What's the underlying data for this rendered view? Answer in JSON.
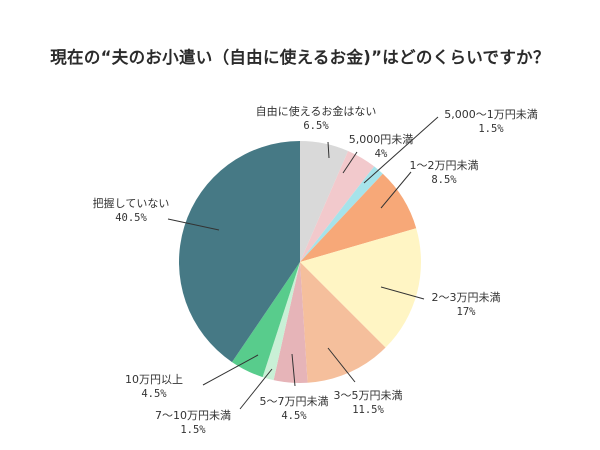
{
  "title": "現在の“夫のお小遣い（自由に使えるお金)”はどのくらいですか？",
  "chart_data": {
    "type": "pie",
    "title": "現在の“夫のお小遣い（自由に使えるお金)”はどのくらいですか？",
    "start_angle": "12 o'clock",
    "direction": "clockwise",
    "legend": "none (leader-line labels)",
    "slices": [
      {
        "label": "自由に使えるお金はない",
        "value": 6.5,
        "display": "6.5%",
        "color": "#d9d9d9"
      },
      {
        "label": "5,000円未満",
        "value": 4,
        "display": "4%",
        "color": "#f2c9cc"
      },
      {
        "label": "5,000〜1万円未満",
        "value": 1.5,
        "display": "1.5%",
        "color": "#a6e3ea"
      },
      {
        "label": "1〜2万円未満",
        "value": 8.5,
        "display": "8.5%",
        "color": "#f7a878"
      },
      {
        "label": "2〜3万円未満",
        "value": 17,
        "display": "17%",
        "color": "#fff5c4"
      },
      {
        "label": "3〜5万円未満",
        "value": 11.5,
        "display": "11.5%",
        "color": "#f5bf9c"
      },
      {
        "label": "5〜7万円未満",
        "value": 4.5,
        "display": "4.5%",
        "color": "#e6b4b8"
      },
      {
        "label": "7〜10万円未満",
        "value": 1.5,
        "display": "1.5%",
        "color": "#c9f0d6"
      },
      {
        "label": "10万円以上",
        "value": 4.5,
        "display": "4.5%",
        "color": "#58cc8c"
      },
      {
        "label": "把握していない",
        "value": 40.5,
        "display": "40.5%",
        "color": "#467985"
      }
    ]
  },
  "labels": [
    {
      "name": "自由に使えるお金はない",
      "pct": "6.5%"
    },
    {
      "name": "5,000円未満",
      "pct": "4%"
    },
    {
      "name": "5,000〜1万円未満",
      "pct": "1.5%"
    },
    {
      "name": "1〜2万円未満",
      "pct": "8.5%"
    },
    {
      "name": "2〜3万円未満",
      "pct": "17%"
    },
    {
      "name": "3〜5万円未満",
      "pct": "11.5%"
    },
    {
      "name": "5〜7万円未満",
      "pct": "4.5%"
    },
    {
      "name": "7〜10万円未満",
      "pct": "1.5%"
    },
    {
      "name": "10万円以上",
      "pct": "4.5%"
    },
    {
      "name": "把握していない",
      "pct": "40.5%"
    }
  ]
}
